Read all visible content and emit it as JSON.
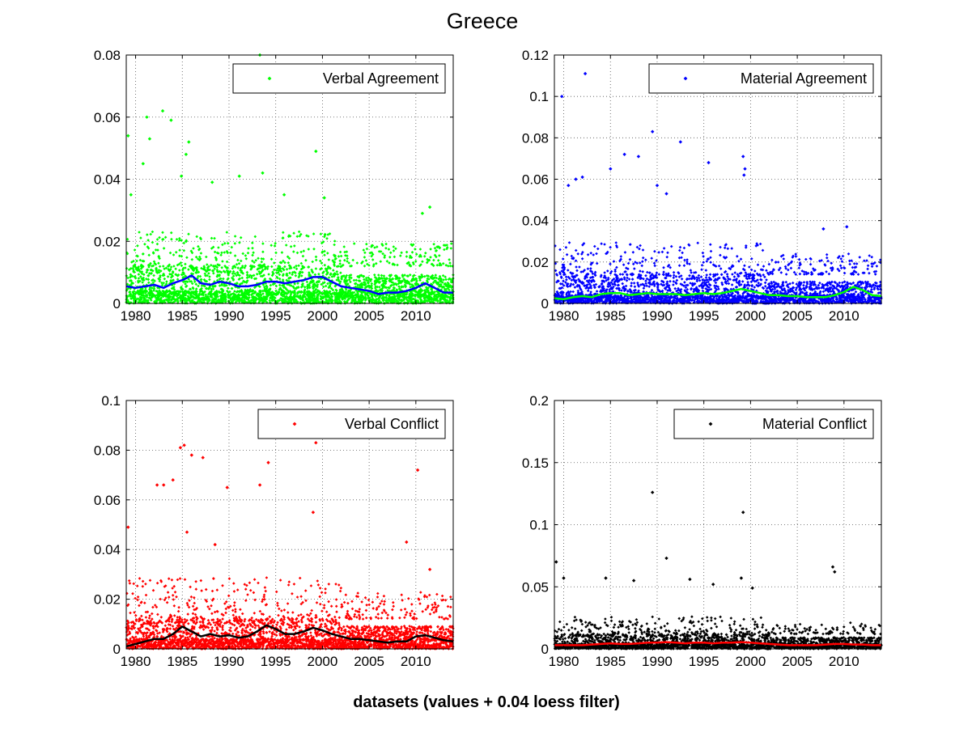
{
  "title": "Greece",
  "xlabel": "datasets (values + 0.04 loess filter)",
  "chart_data": [
    {
      "type": "scatter",
      "legend": "Verbal Agreement",
      "legend_position": "top-right",
      "grid": true,
      "xlim": [
        1979,
        2014
      ],
      "ylim": [
        0,
        0.08
      ],
      "xticks": [
        1980,
        1985,
        1990,
        1995,
        2000,
        2005,
        2010
      ],
      "yticks": [
        0,
        0.02,
        0.04,
        0.06,
        0.08
      ],
      "ytick_labels": [
        "0",
        "0.02",
        "0.04",
        "0.06",
        "0.08"
      ],
      "point_color": "#00ff00",
      "line_color": "#0000ff",
      "seed": 11,
      "density": 3200,
      "band": [
        0.004,
        0.012,
        0.02
      ],
      "outliers": [
        [
          1979.2,
          0.054
        ],
        [
          1979.5,
          0.035
        ],
        [
          1981.2,
          0.06
        ],
        [
          1980.8,
          0.045
        ],
        [
          1981.5,
          0.053
        ],
        [
          1982.9,
          0.062
        ],
        [
          1983.8,
          0.059
        ],
        [
          1985.7,
          0.052
        ],
        [
          1985.4,
          0.048
        ],
        [
          1984.9,
          0.041
        ],
        [
          1988.2,
          0.039
        ],
        [
          1991.1,
          0.041
        ],
        [
          1993.3,
          0.08
        ],
        [
          1993.6,
          0.042
        ],
        [
          1995.9,
          0.035
        ],
        [
          1999.3,
          0.049
        ],
        [
          2000.2,
          0.034
        ],
        [
          2011.5,
          0.031
        ],
        [
          2010.7,
          0.029
        ]
      ],
      "smooth_x": [
        1979,
        1980,
        1981,
        1982,
        1983,
        1984,
        1985,
        1986,
        1987,
        1988,
        1989,
        1990,
        1991,
        1992,
        1993,
        1994,
        1995,
        1996,
        1997,
        1998,
        1999,
        2000,
        2001,
        2002,
        2003,
        2004,
        2005,
        2006,
        2007,
        2008,
        2009,
        2010,
        2011,
        2012,
        2013,
        2014
      ],
      "smooth_y": [
        0.0055,
        0.005,
        0.0055,
        0.006,
        0.005,
        0.0065,
        0.0075,
        0.009,
        0.0065,
        0.006,
        0.007,
        0.0065,
        0.0055,
        0.0055,
        0.006,
        0.007,
        0.007,
        0.0065,
        0.007,
        0.0075,
        0.0085,
        0.0085,
        0.007,
        0.0055,
        0.005,
        0.0045,
        0.004,
        0.003,
        0.0035,
        0.0035,
        0.004,
        0.005,
        0.0065,
        0.005,
        0.0035,
        0.0035
      ]
    },
    {
      "type": "scatter",
      "legend": "Material Agreement",
      "legend_position": "top-right",
      "grid": true,
      "xlim": [
        1979,
        2014
      ],
      "ylim": [
        0,
        0.12
      ],
      "xticks": [
        1980,
        1985,
        1990,
        1995,
        2000,
        2005,
        2010
      ],
      "yticks": [
        0,
        0.02,
        0.04,
        0.06,
        0.08,
        0.1,
        0.12
      ],
      "ytick_labels": [
        "0",
        "0.02",
        "0.04",
        "0.06",
        "0.08",
        "0.1",
        "0.12"
      ],
      "point_color": "#0000ff",
      "line_color": "#00ff00",
      "seed": 23,
      "density": 3000,
      "band": [
        0.004,
        0.014,
        0.025
      ],
      "outliers": [
        [
          1979.8,
          0.1
        ],
        [
          1982.3,
          0.111
        ],
        [
          1989.5,
          0.083
        ],
        [
          1992.5,
          0.078
        ],
        [
          1999.2,
          0.071
        ],
        [
          1999.4,
          0.065
        ],
        [
          1999.3,
          0.062
        ],
        [
          1985.0,
          0.065
        ],
        [
          1986.5,
          0.072
        ],
        [
          1988.0,
          0.071
        ],
        [
          1981.3,
          0.06
        ],
        [
          1982.0,
          0.061
        ],
        [
          1990.0,
          0.057
        ],
        [
          1991.0,
          0.053
        ],
        [
          1995.5,
          0.068
        ],
        [
          1980.5,
          0.057
        ],
        [
          2007.8,
          0.036
        ],
        [
          2010.3,
          0.037
        ]
      ],
      "smooth_x": [
        1979,
        1980,
        1981,
        1982,
        1983,
        1984,
        1985,
        1986,
        1987,
        1988,
        1989,
        1990,
        1991,
        1992,
        1993,
        1994,
        1995,
        1996,
        1997,
        1998,
        1999,
        2000,
        2001,
        2002,
        2003,
        2004,
        2005,
        2006,
        2007,
        2008,
        2009,
        2010,
        2011,
        2012,
        2013,
        2014
      ],
      "smooth_y": [
        0.0025,
        0.002,
        0.003,
        0.0035,
        0.003,
        0.0045,
        0.005,
        0.005,
        0.004,
        0.0045,
        0.005,
        0.0045,
        0.0045,
        0.0045,
        0.004,
        0.0045,
        0.005,
        0.0045,
        0.005,
        0.006,
        0.007,
        0.006,
        0.005,
        0.004,
        0.004,
        0.0035,
        0.0035,
        0.003,
        0.003,
        0.003,
        0.004,
        0.0055,
        0.008,
        0.0065,
        0.004,
        0.0035
      ]
    },
    {
      "type": "scatter",
      "legend": "Verbal Conflict",
      "legend_position": "top-right",
      "grid": true,
      "xlim": [
        1979,
        2014
      ],
      "ylim": [
        0,
        0.1
      ],
      "xticks": [
        1980,
        1985,
        1990,
        1995,
        2000,
        2005,
        2010
      ],
      "yticks": [
        0,
        0.02,
        0.04,
        0.06,
        0.08,
        0.1
      ],
      "ytick_labels": [
        "0",
        "0.02",
        "0.04",
        "0.06",
        "0.08",
        "0.1"
      ],
      "point_color": "#ff0000",
      "line_color": "#000000",
      "seed": 37,
      "density": 3200,
      "band": [
        0.004,
        0.012,
        0.024
      ],
      "outliers": [
        [
          1979.2,
          0.049
        ],
        [
          1985.2,
          0.082
        ],
        [
          1986.0,
          0.078
        ],
        [
          1987.2,
          0.077
        ],
        [
          1984.8,
          0.081
        ],
        [
          1982.3,
          0.066
        ],
        [
          1983.0,
          0.066
        ],
        [
          1984.0,
          0.068
        ],
        [
          1989.8,
          0.065
        ],
        [
          1994.2,
          0.075
        ],
        [
          1993.3,
          0.066
        ],
        [
          1999.3,
          0.083
        ],
        [
          1999.0,
          0.055
        ],
        [
          2010.2,
          0.072
        ],
        [
          2009.0,
          0.043
        ],
        [
          2011.5,
          0.032
        ],
        [
          1985.5,
          0.047
        ],
        [
          1988.5,
          0.042
        ]
      ],
      "smooth_x": [
        1979,
        1980,
        1981,
        1982,
        1983,
        1984,
        1985,
        1986,
        1987,
        1988,
        1989,
        1990,
        1991,
        1992,
        1993,
        1994,
        1995,
        1996,
        1997,
        1998,
        1999,
        2000,
        2001,
        2002,
        2003,
        2004,
        2005,
        2006,
        2007,
        2008,
        2009,
        2010,
        2011,
        2012,
        2013,
        2014
      ],
      "smooth_y": [
        0.001,
        0.002,
        0.003,
        0.004,
        0.004,
        0.006,
        0.009,
        0.007,
        0.005,
        0.006,
        0.005,
        0.0055,
        0.0045,
        0.005,
        0.007,
        0.0095,
        0.008,
        0.006,
        0.006,
        0.007,
        0.0085,
        0.0075,
        0.006,
        0.005,
        0.004,
        0.004,
        0.0035,
        0.003,
        0.0025,
        0.003,
        0.003,
        0.005,
        0.0055,
        0.0045,
        0.0035,
        0.003
      ]
    },
    {
      "type": "scatter",
      "legend": "Material Conflict",
      "legend_position": "top-right",
      "grid": true,
      "xlim": [
        1979,
        2014
      ],
      "ylim": [
        0,
        0.2
      ],
      "xticks": [
        1980,
        1985,
        1990,
        1995,
        2000,
        2005,
        2010
      ],
      "yticks": [
        0,
        0.05,
        0.1,
        0.15,
        0.2
      ],
      "ytick_labels": [
        "0",
        "0.05",
        "0.1",
        "0.15",
        "0.2"
      ],
      "point_color": "#000000",
      "line_color": "#ff0000",
      "seed": 53,
      "density": 2600,
      "band": [
        0.004,
        0.012,
        0.022
      ],
      "outliers": [
        [
          1979.2,
          0.07
        ],
        [
          1989.5,
          0.126
        ],
        [
          1999.2,
          0.11
        ],
        [
          1991.0,
          0.073
        ],
        [
          1999.0,
          0.057
        ],
        [
          2008.8,
          0.066
        ],
        [
          2009.0,
          0.062
        ],
        [
          1980.0,
          0.057
        ],
        [
          1984.5,
          0.057
        ],
        [
          1987.5,
          0.055
        ],
        [
          1993.5,
          0.056
        ],
        [
          1996.0,
          0.052
        ],
        [
          2000.2,
          0.049
        ]
      ],
      "smooth_x": [
        1979,
        1980,
        1981,
        1982,
        1983,
        1984,
        1985,
        1986,
        1987,
        1988,
        1989,
        1990,
        1991,
        1992,
        1993,
        1994,
        1995,
        1996,
        1997,
        1998,
        1999,
        2000,
        2001,
        2002,
        2003,
        2004,
        2005,
        2006,
        2007,
        2008,
        2009,
        2010,
        2011,
        2012,
        2013,
        2014
      ],
      "smooth_y": [
        0.003,
        0.003,
        0.003,
        0.003,
        0.0035,
        0.004,
        0.0045,
        0.004,
        0.004,
        0.0045,
        0.005,
        0.005,
        0.0055,
        0.005,
        0.0045,
        0.005,
        0.005,
        0.0045,
        0.005,
        0.005,
        0.0055,
        0.005,
        0.0045,
        0.004,
        0.0035,
        0.003,
        0.003,
        0.003,
        0.003,
        0.0035,
        0.004,
        0.004,
        0.0035,
        0.0035,
        0.003,
        0.003
      ]
    }
  ]
}
